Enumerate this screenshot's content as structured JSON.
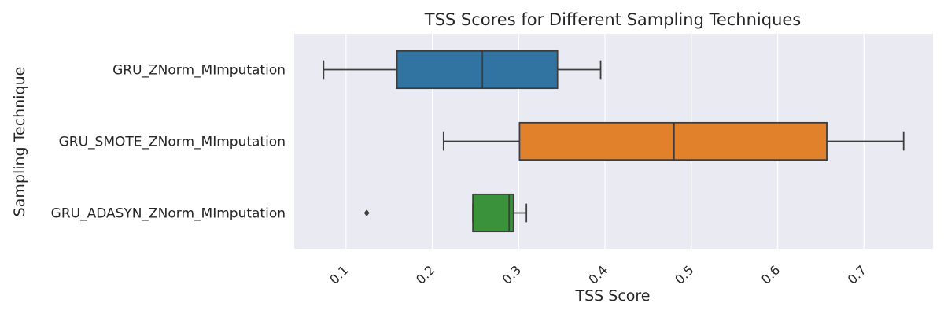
{
  "chart_data": {
    "type": "boxplot",
    "orientation": "horizontal",
    "title": "TSS Scores for Different Sampling Techniques",
    "xlabel": "TSS Score",
    "ylabel": "Sampling Technique",
    "xlim": [
      0.04,
      0.78
    ],
    "x_ticks": [
      0.1,
      0.2,
      0.3,
      0.4,
      0.5,
      0.6,
      0.7
    ],
    "x_tick_labels": [
      "0.1",
      "0.2",
      "0.3",
      "0.4",
      "0.5",
      "0.6",
      "0.7"
    ],
    "grid": "vertical",
    "categories": [
      "GRU_ZNorm_MImputation",
      "GRU_SMOTE_ZNorm_MImputation",
      "GRU_ADASYN_ZNorm_MImputation"
    ],
    "series": [
      {
        "category": "GRU_ZNorm_MImputation",
        "whisker_low": 0.074,
        "q1": 0.159,
        "median": 0.258,
        "q3": 0.345,
        "whisker_high": 0.395,
        "outliers": [],
        "color": "#3274a1"
      },
      {
        "category": "GRU_SMOTE_ZNorm_MImputation",
        "whisker_low": 0.213,
        "q1": 0.301,
        "median": 0.48,
        "q3": 0.657,
        "whisker_high": 0.746,
        "outliers": [],
        "color": "#e1812c"
      },
      {
        "category": "GRU_ADASYN_ZNorm_MImputation",
        "whisker_low": 0.247,
        "q1": 0.247,
        "median": 0.289,
        "q3": 0.294,
        "whisker_high": 0.309,
        "outliers": [
          0.124
        ],
        "color": "#3a923a"
      }
    ]
  },
  "style": {
    "plot_background": "#eaeaf2",
    "grid_color": "#ffffff",
    "line_color": "#3d3d3d",
    "text_color": "#262626"
  }
}
